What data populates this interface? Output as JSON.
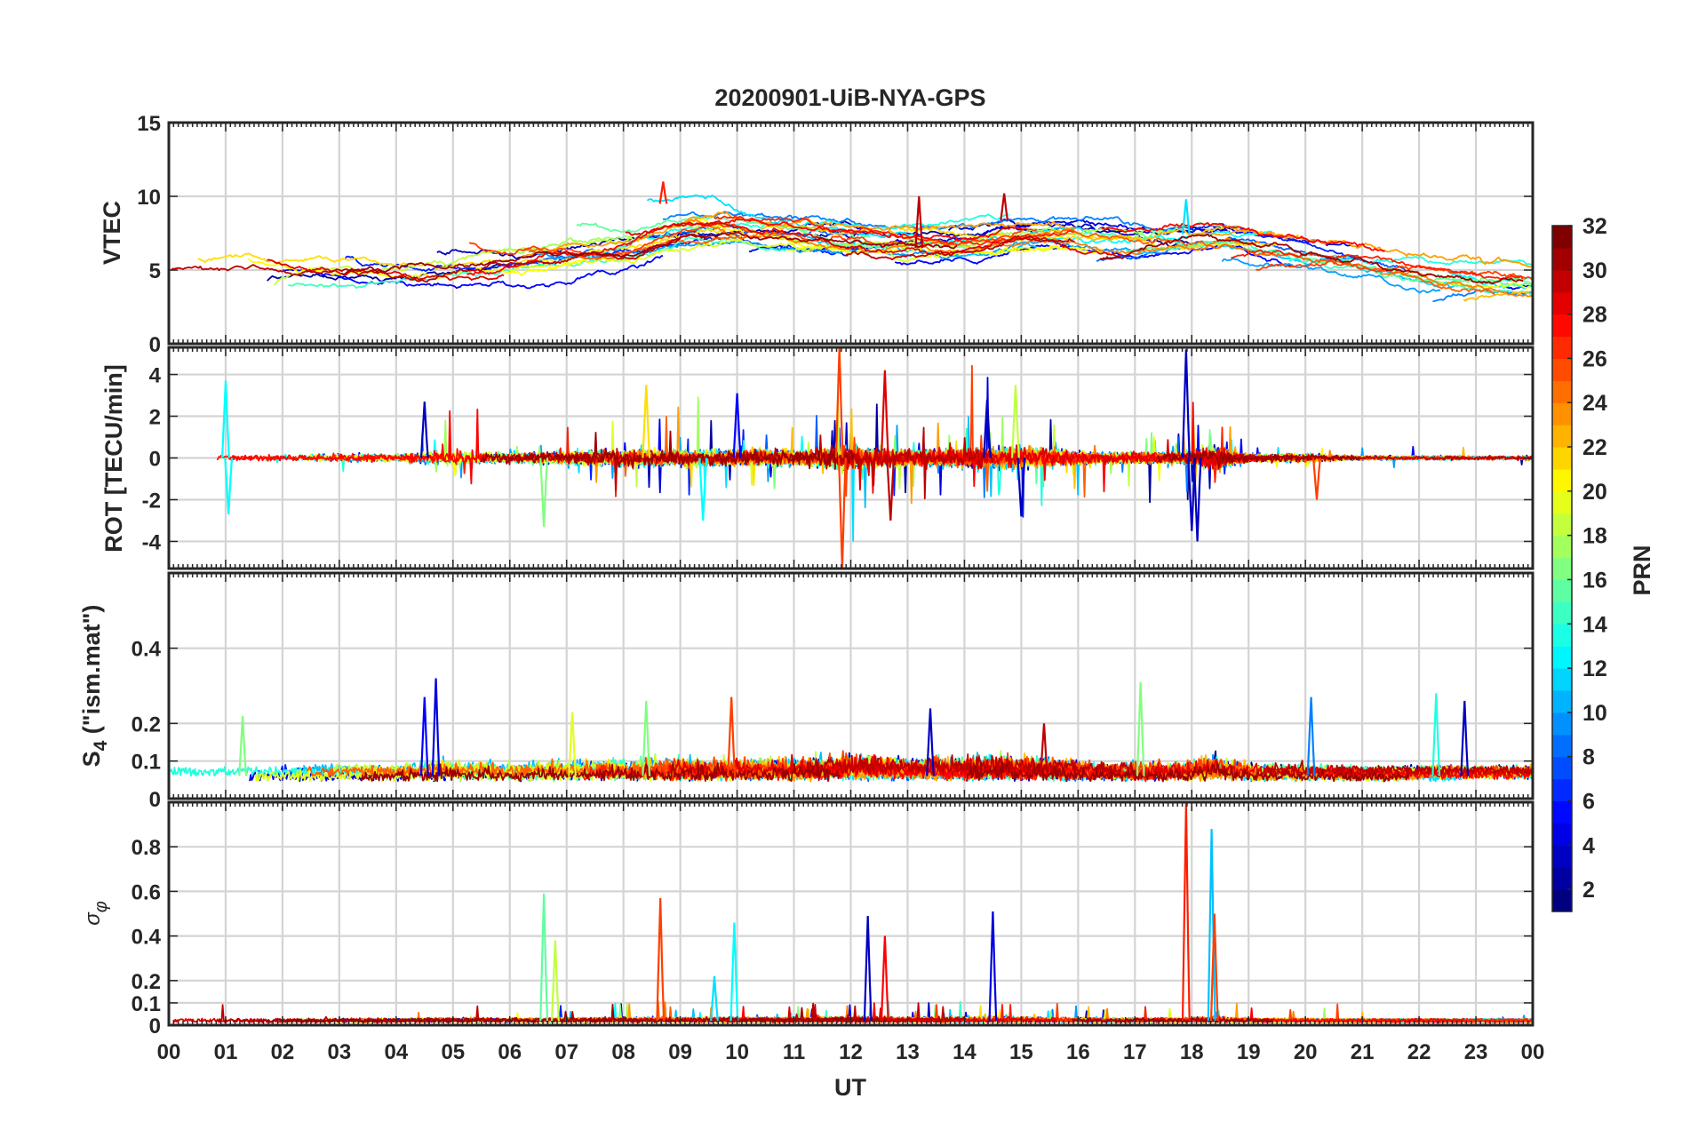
{
  "title": "20200901-UiB-NYA-GPS",
  "xaxis": {
    "label": "UT",
    "ticks": [
      "00",
      "01",
      "02",
      "03",
      "04",
      "05",
      "06",
      "07",
      "08",
      "09",
      "10",
      "11",
      "12",
      "13",
      "14",
      "15",
      "16",
      "17",
      "18",
      "19",
      "20",
      "21",
      "22",
      "23",
      "00"
    ]
  },
  "colorbar": {
    "label": "PRN",
    "ticks": [
      "2",
      "4",
      "6",
      "8",
      "10",
      "12",
      "14",
      "16",
      "18",
      "20",
      "22",
      "24",
      "26",
      "28",
      "30",
      "32"
    ],
    "range": [
      1,
      32
    ],
    "colormap": "jet"
  },
  "panels": [
    {
      "id": "vtec",
      "ylabel": "VTEC",
      "ylim": [
        0,
        15
      ],
      "yticks": [
        "0",
        "5",
        "10",
        "15"
      ],
      "ytick_values": [
        0,
        5,
        10,
        15
      ]
    },
    {
      "id": "rot",
      "ylabel": "ROT [TECU/min]",
      "ylim": [
        -5.3,
        5.3
      ],
      "yticks": [
        "-4",
        "-2",
        "0",
        "2",
        "4"
      ],
      "ytick_values": [
        -4,
        -2,
        0,
        2,
        4
      ]
    },
    {
      "id": "s4",
      "ylabel_main": "S",
      "ylabel_sub": "4",
      "ylabel_rest": " (\"ism.mat\")",
      "ylim": [
        0,
        0.6
      ],
      "yticks": [
        "0",
        "0.1",
        "0.2",
        "0.4"
      ],
      "ytick_values": [
        0,
        0.1,
        0.2,
        0.4
      ]
    },
    {
      "id": "sigphi",
      "ylabel_main": "σ",
      "ylabel_sub": "φ",
      "ylim": [
        0,
        1
      ],
      "yticks": [
        "0",
        "0.1",
        "0.2",
        "0.4",
        "0.6",
        "0.8"
      ],
      "ytick_values": [
        0,
        0.1,
        0.2,
        0.4,
        0.6,
        0.8
      ]
    }
  ],
  "chart_data": [
    {
      "type": "line",
      "panel": "VTEC",
      "x_unit": "UT hour",
      "xlim": [
        0,
        24
      ],
      "ylim": [
        0,
        15
      ],
      "grid": true,
      "color_by": "PRN",
      "description_of_envelope": "Multi-PRN VTEC traces",
      "envelope_x": [
        0,
        2,
        4,
        6,
        8,
        8.7,
        10,
        12,
        13.5,
        14.8,
        16,
        17,
        18,
        19,
        20,
        21,
        22,
        23,
        24
      ],
      "envelope_y": [
        5,
        4.8,
        5.2,
        6.2,
        7.5,
        9.5,
        7.0,
        6.5,
        6.5,
        8.5,
        6.5,
        6.8,
        7.5,
        6.2,
        5.5,
        4.2,
        3.5,
        3.8,
        4.0
      ],
      "peaks": [
        {
          "x": 8.7,
          "y": 11,
          "prn": 28
        },
        {
          "x": 14.7,
          "y": 10.2,
          "prn": 31
        },
        {
          "x": 17.9,
          "y": 9.8,
          "prn": 12
        },
        {
          "x": 13.2,
          "y": 10,
          "prn": 31
        }
      ]
    },
    {
      "type": "line",
      "panel": "ROT",
      "x_unit": "UT hour",
      "xlim": [
        0,
        24
      ],
      "ylim": [
        -5.3,
        5.3
      ],
      "grid": true,
      "color_by": "PRN",
      "spikes": [
        {
          "x": 1.0,
          "y": 3.7,
          "prn": 13
        },
        {
          "x": 1.05,
          "y": -2.7,
          "prn": 13
        },
        {
          "x": 4.5,
          "y": 2.7,
          "prn": 3
        },
        {
          "x": 6.6,
          "y": -3.3,
          "prn": 17
        },
        {
          "x": 8.4,
          "y": 3.5,
          "prn": 22
        },
        {
          "x": 9.4,
          "y": -3.0,
          "prn": 13
        },
        {
          "x": 10.0,
          "y": 3.1,
          "prn": 5
        },
        {
          "x": 11.8,
          "y": 5.3,
          "prn": 27
        },
        {
          "x": 11.85,
          "y": -5.3,
          "prn": 27
        },
        {
          "x": 12.6,
          "y": 4.2,
          "prn": 30
        },
        {
          "x": 12.7,
          "y": -3.0,
          "prn": 31
        },
        {
          "x": 14.4,
          "y": 2.8,
          "prn": 3
        },
        {
          "x": 14.9,
          "y": 3.5,
          "prn": 19
        },
        {
          "x": 15.0,
          "y": -2.8,
          "prn": 3
        },
        {
          "x": 17.9,
          "y": 5.2,
          "prn": 3
        },
        {
          "x": 18.0,
          "y": -3.5,
          "prn": 3
        },
        {
          "x": 18.1,
          "y": -4.0,
          "prn": 3
        },
        {
          "x": 20.2,
          "y": -2.0,
          "prn": 27
        }
      ]
    },
    {
      "type": "line",
      "panel": "S4 (\"ism.mat\")",
      "x_unit": "UT hour",
      "xlim": [
        0,
        24
      ],
      "ylim": [
        0,
        0.6
      ],
      "grid": true,
      "color_by": "PRN",
      "baseline": 0.06,
      "peaks": [
        {
          "x": 1.3,
          "y": 0.22,
          "prn": 17
        },
        {
          "x": 4.7,
          "y": 0.32,
          "prn": 4
        },
        {
          "x": 4.5,
          "y": 0.27,
          "prn": 5
        },
        {
          "x": 7.1,
          "y": 0.23,
          "prn": 20
        },
        {
          "x": 8.4,
          "y": 0.26,
          "prn": 17
        },
        {
          "x": 9.9,
          "y": 0.27,
          "prn": 27
        },
        {
          "x": 13.4,
          "y": 0.24,
          "prn": 3
        },
        {
          "x": 15.4,
          "y": 0.2,
          "prn": 31
        },
        {
          "x": 17.1,
          "y": 0.31,
          "prn": 17
        },
        {
          "x": 20.1,
          "y": 0.27,
          "prn": 9
        },
        {
          "x": 22.3,
          "y": 0.28,
          "prn": 14
        },
        {
          "x": 22.8,
          "y": 0.26,
          "prn": 3
        }
      ]
    },
    {
      "type": "line",
      "panel": "sigma_phi",
      "x_unit": "UT hour",
      "xlim": [
        0,
        24
      ],
      "ylim": [
        0,
        1
      ],
      "grid": true,
      "color_by": "PRN",
      "baseline": 0.02,
      "peaks": [
        {
          "x": 6.6,
          "y": 0.59,
          "prn": 16
        },
        {
          "x": 6.8,
          "y": 0.38,
          "prn": 19
        },
        {
          "x": 8.65,
          "y": 0.57,
          "prn": 27
        },
        {
          "x": 9.6,
          "y": 0.22,
          "prn": 12
        },
        {
          "x": 9.95,
          "y": 0.46,
          "prn": 13
        },
        {
          "x": 12.3,
          "y": 0.49,
          "prn": 3
        },
        {
          "x": 12.6,
          "y": 0.4,
          "prn": 29
        },
        {
          "x": 14.5,
          "y": 0.51,
          "prn": 4
        },
        {
          "x": 17.9,
          "y": 1.0,
          "prn": 28
        },
        {
          "x": 18.35,
          "y": 0.88,
          "prn": 11
        },
        {
          "x": 18.4,
          "y": 0.5,
          "prn": 27
        }
      ]
    }
  ]
}
